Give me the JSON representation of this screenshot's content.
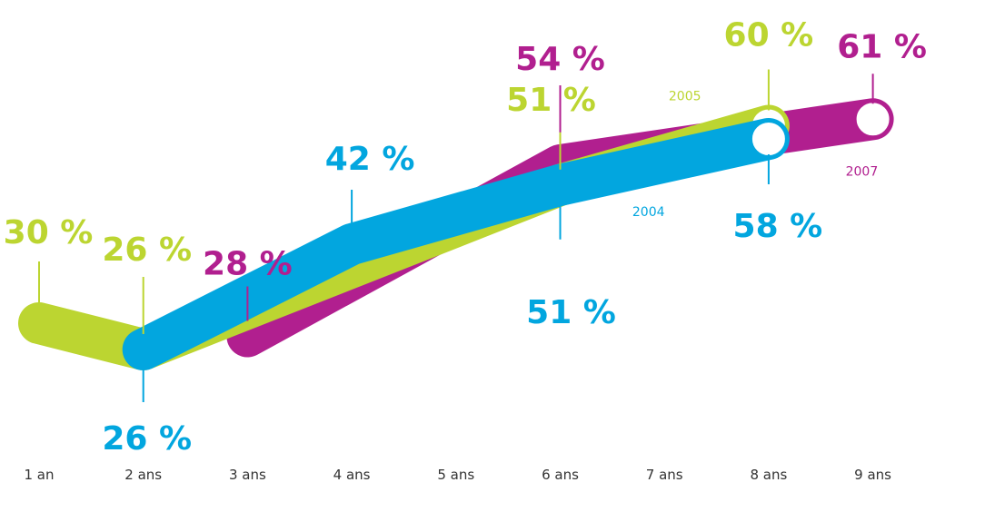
{
  "chart_data": {
    "type": "line",
    "categories": [
      "1 an",
      "2 ans",
      "3 ans",
      "4 ans",
      "5 ans",
      "6 ans",
      "7 ans",
      "8 ans",
      "9 ans"
    ],
    "series": [
      {
        "name": "2007",
        "color": "#b11f8f",
        "x": [
          "3 ans",
          "6 ans",
          "9 ans"
        ],
        "values": [
          28,
          54,
          61
        ],
        "labels": [
          "28 %",
          "54 %",
          "61 %"
        ]
      },
      {
        "name": "2005",
        "color": "#bcd531",
        "x": [
          "1 an",
          "2 ans",
          "6 ans",
          "8 ans"
        ],
        "values": [
          30,
          26,
          51,
          60
        ],
        "labels": [
          "30 %",
          "26 %",
          "51 %",
          "60 %"
        ]
      },
      {
        "name": "2004",
        "color": "#02a6df",
        "x": [
          "2 ans",
          "4 ans",
          "6 ans",
          "8 ans"
        ],
        "values": [
          26,
          42,
          51,
          58
        ],
        "labels": [
          "26 %",
          "42 %",
          "51 %",
          "58 %"
        ]
      }
    ],
    "grid": false,
    "legend": "inline"
  }
}
